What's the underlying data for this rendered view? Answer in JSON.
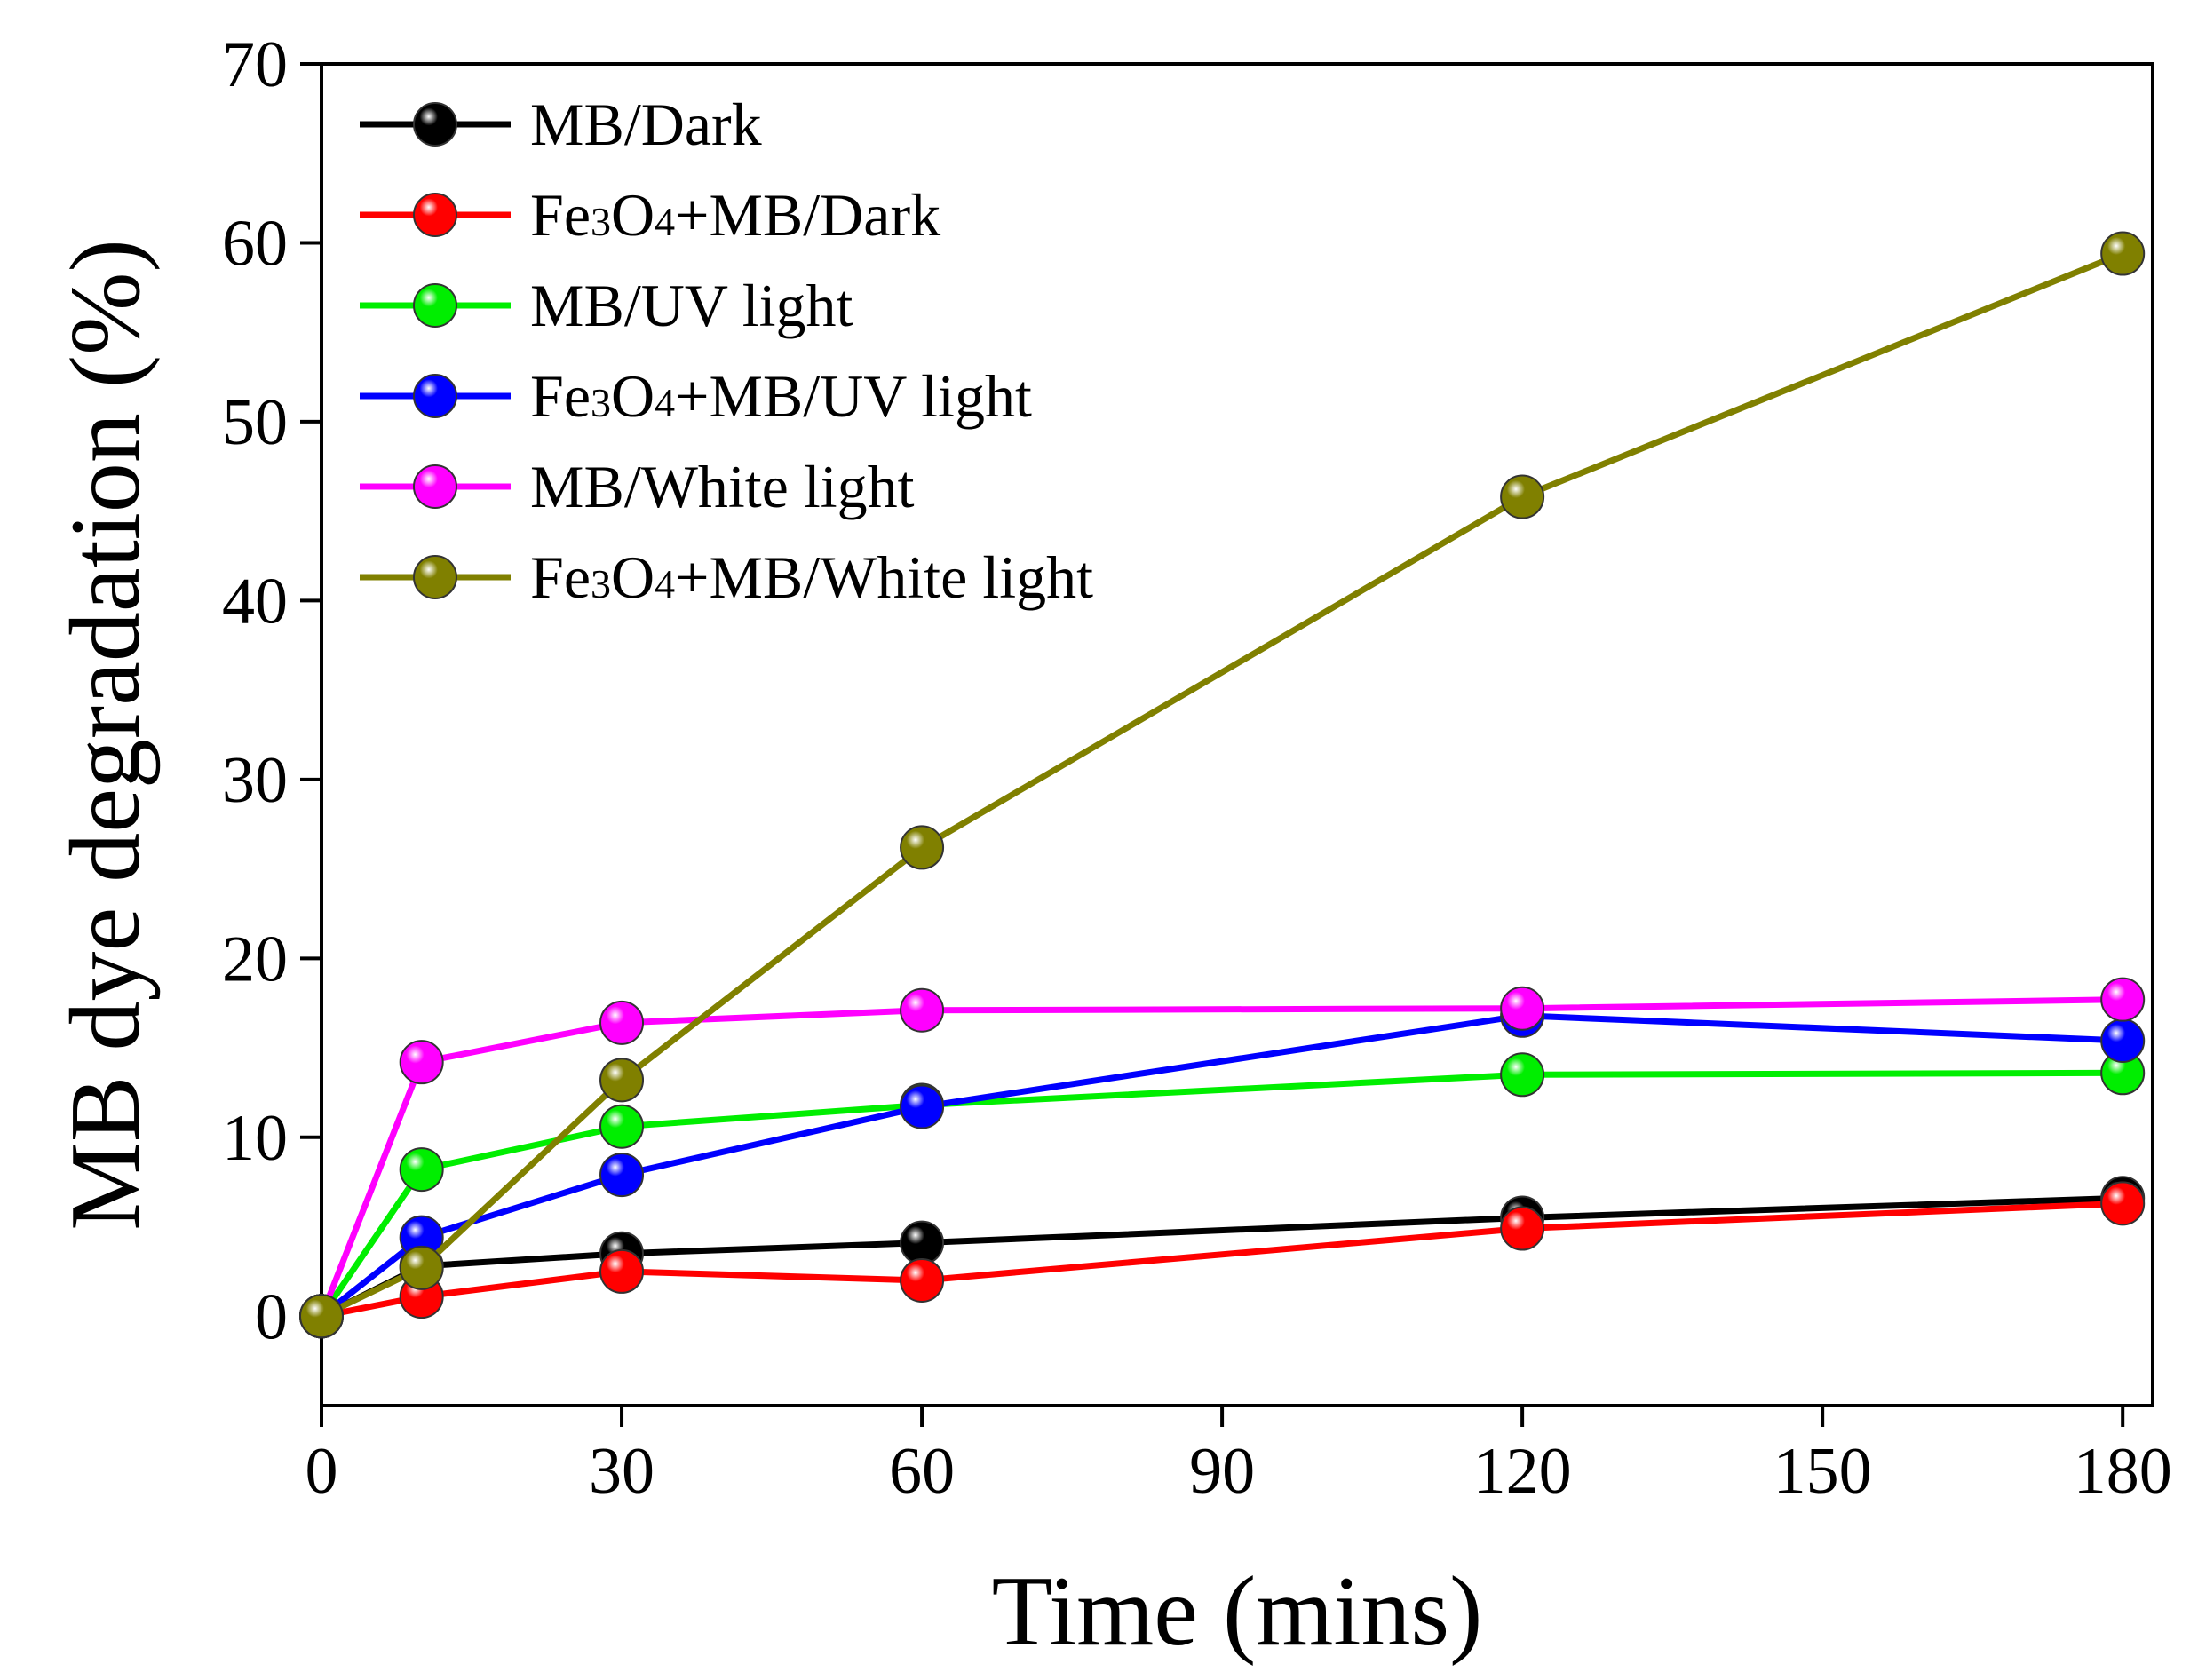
{
  "chart_data": {
    "type": "line",
    "title": "",
    "xlabel": "Time (mins)",
    "ylabel": "MB dye degradation (%)",
    "xlim": [
      0,
      183
    ],
    "ylim": [
      -5,
      70
    ],
    "xticks": [
      0,
      30,
      60,
      90,
      120,
      150,
      180
    ],
    "yticks": [
      0,
      10,
      20,
      30,
      40,
      50,
      60,
      70
    ],
    "xtick_labels": [
      "0",
      "30",
      "60",
      "90",
      "120",
      "150",
      "180"
    ],
    "ytick_labels": [
      "0",
      "10",
      "20",
      "30",
      "40",
      "50",
      "60",
      "70"
    ],
    "grid": false,
    "legend_position": "top-left",
    "series": [
      {
        "name": "MB/Dark",
        "label": "MB/Dark",
        "color": "#000000",
        "x": [
          0,
          10,
          30,
          60,
          120,
          180
        ],
        "y": [
          0,
          2.8,
          3.5,
          4.1,
          5.5,
          6.6
        ]
      },
      {
        "name": "Fe3O4+MB/Dark",
        "label_parts": [
          "Fe",
          "3",
          "O",
          "4",
          "+MB/Dark"
        ],
        "color": "#ff0000",
        "x": [
          0,
          10,
          30,
          60,
          120,
          180
        ],
        "y": [
          0,
          1.1,
          2.5,
          2.0,
          4.9,
          6.3
        ]
      },
      {
        "name": "MB/UV light",
        "label": "MB/UV light",
        "color": "#00ee00",
        "x": [
          0,
          10,
          30,
          60,
          120,
          180
        ],
        "y": [
          0,
          8.2,
          10.6,
          11.8,
          13.5,
          13.6
        ]
      },
      {
        "name": "Fe3O4+MB/UV light",
        "label_parts": [
          "Fe",
          "3",
          "O",
          "4",
          "+MB/UV light"
        ],
        "color": "#0000ff",
        "x": [
          0,
          10,
          30,
          60,
          120,
          180
        ],
        "y": [
          0,
          4.4,
          7.9,
          11.7,
          16.8,
          15.4
        ]
      },
      {
        "name": "MB/White light",
        "label": "MB/White light",
        "color": "#ff00ff",
        "x": [
          0,
          10,
          30,
          60,
          120,
          180
        ],
        "y": [
          0,
          14.2,
          16.4,
          17.1,
          17.2,
          17.7
        ]
      },
      {
        "name": "Fe3O4+MB/White light",
        "label_parts": [
          "Fe",
          "3",
          "O",
          "4",
          "+MB/White light"
        ],
        "color": "#808000",
        "x": [
          0,
          10,
          30,
          60,
          120,
          180
        ],
        "y": [
          0,
          2.7,
          13.2,
          26.2,
          45.8,
          59.4
        ]
      }
    ]
  }
}
